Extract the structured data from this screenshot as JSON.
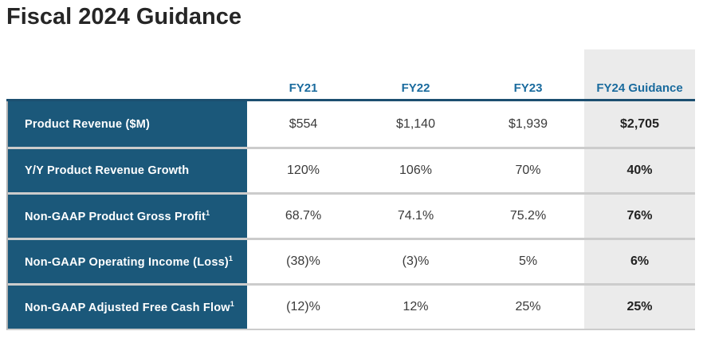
{
  "title": "Fiscal 2024 Guidance",
  "table": {
    "columns": [
      "FY21",
      "FY22",
      "FY23",
      "FY24 Guidance"
    ],
    "rows": [
      {
        "label": "Product Revenue ($M)",
        "sup": "",
        "values": [
          "$554",
          "$1,140",
          "$1,939",
          "$2,705"
        ]
      },
      {
        "label": "Y/Y Product Revenue Growth",
        "sup": "",
        "values": [
          "120%",
          "106%",
          "70%",
          "40%"
        ]
      },
      {
        "label": "Non-GAAP Product Gross Profit",
        "sup": "1",
        "values": [
          "68.7%",
          "74.1%",
          "75.2%",
          "76%"
        ]
      },
      {
        "label": "Non-GAAP Operating Income (Loss)",
        "sup": "1",
        "values": [
          "(38)%",
          "(3)%",
          "5%",
          "6%"
        ]
      },
      {
        "label": "Non-GAAP Adjusted Free Cash Flow",
        "sup": "1",
        "values": [
          "(12)%",
          "12%",
          "25%",
          "25%"
        ]
      }
    ]
  },
  "chart_data": {
    "type": "table",
    "title": "Fiscal 2024 Guidance",
    "categories": [
      "FY21",
      "FY22",
      "FY23",
      "FY24 Guidance"
    ],
    "series": [
      {
        "name": "Product Revenue ($M)",
        "values": [
          554,
          1140,
          1939,
          2705
        ]
      },
      {
        "name": "Y/Y Product Revenue Growth (%)",
        "values": [
          120,
          106,
          70,
          40
        ]
      },
      {
        "name": "Non-GAAP Product Gross Profit (%)",
        "values": [
          68.7,
          74.1,
          75.2,
          76
        ]
      },
      {
        "name": "Non-GAAP Operating Income (Loss) (%)",
        "values": [
          -38,
          -3,
          5,
          6
        ]
      },
      {
        "name": "Non-GAAP Adjusted Free Cash Flow (%)",
        "values": [
          -12,
          12,
          25,
          25
        ]
      }
    ]
  },
  "colors": {
    "row_label_background": "#1B587A",
    "header_text_blue": "#1A6B9E",
    "header_underline": "#1C4F70",
    "fy24_column_background": "#EBEBEB",
    "row_separator": "#CCCCCC",
    "title_text": "#262626",
    "value_text": "#3A3A3A"
  }
}
